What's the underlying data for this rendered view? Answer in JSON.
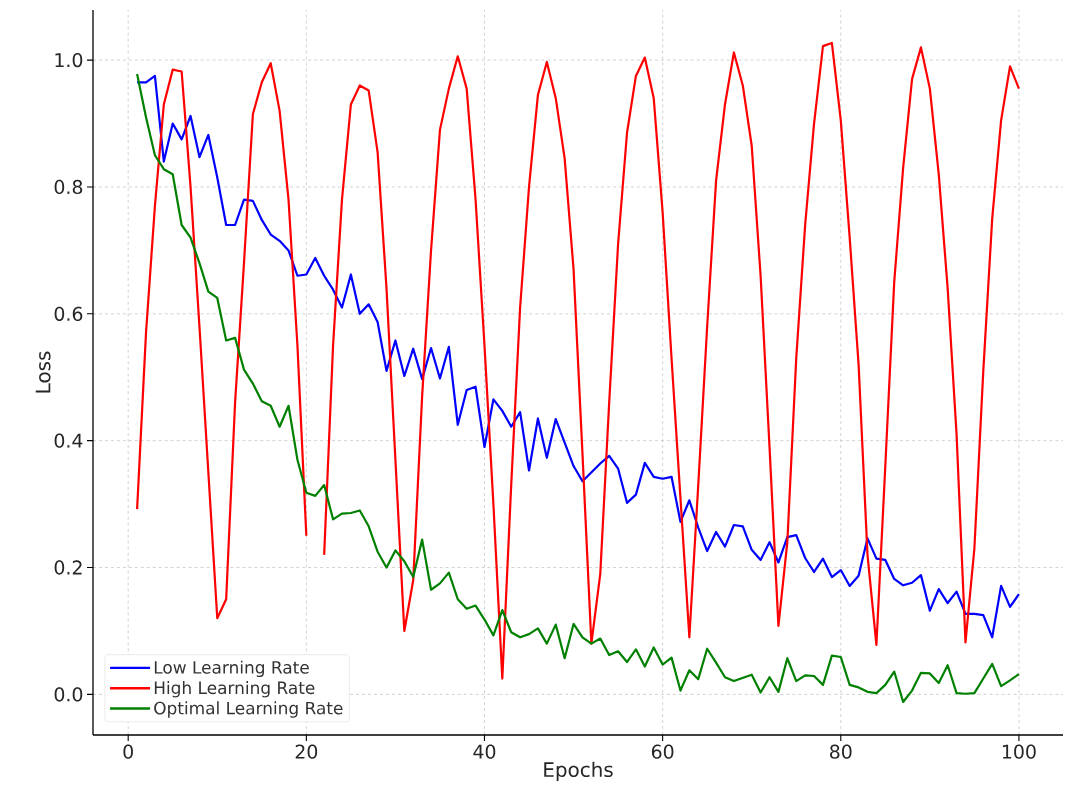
{
  "chart_data": {
    "type": "line",
    "xlabel": "Epochs",
    "ylabel": "Loss",
    "x": [
      1,
      2,
      3,
      4,
      5,
      6,
      7,
      8,
      9,
      10,
      11,
      12,
      13,
      14,
      15,
      16,
      17,
      18,
      19,
      20,
      21,
      22,
      23,
      24,
      25,
      26,
      27,
      28,
      29,
      30,
      31,
      32,
      33,
      34,
      35,
      36,
      37,
      38,
      39,
      40,
      41,
      42,
      43,
      44,
      45,
      46,
      47,
      48,
      49,
      50,
      51,
      52,
      53,
      54,
      55,
      56,
      57,
      58,
      59,
      60,
      61,
      62,
      63,
      64,
      65,
      66,
      67,
      68,
      69,
      70,
      71,
      72,
      73,
      74,
      75,
      76,
      77,
      78,
      79,
      80,
      81,
      82,
      83,
      84,
      85,
      86,
      87,
      88,
      89,
      90,
      91,
      92,
      93,
      94,
      95,
      96,
      97,
      98,
      99,
      100
    ],
    "series": [
      {
        "name": "Low Learning Rate",
        "color": "#0000ff",
        "values": [
          0.965,
          0.965,
          0.975,
          0.84,
          0.9,
          0.875,
          0.912,
          0.847,
          0.882,
          0.815,
          0.74,
          0.74,
          0.78,
          0.778,
          0.748,
          0.725,
          0.715,
          0.7,
          0.66,
          0.662,
          0.688,
          0.66,
          0.638,
          0.61,
          0.662,
          0.6,
          0.615,
          0.587,
          0.51,
          0.558,
          0.502,
          0.545,
          0.497,
          0.546,
          0.498,
          0.548,
          0.425,
          0.48,
          0.485,
          0.39,
          0.465,
          0.447,
          0.422,
          0.445,
          0.353,
          0.435,
          0.373,
          0.434,
          0.397,
          0.36,
          0.336,
          0.35,
          0.364,
          0.376,
          0.356,
          0.302,
          0.315,
          0.365,
          0.343,
          0.34,
          0.343,
          0.272,
          0.306,
          0.263,
          0.226,
          0.256,
          0.233,
          0.267,
          0.265,
          0.228,
          0.212,
          0.24,
          0.208,
          0.248,
          0.251,
          0.215,
          0.193,
          0.214,
          0.185,
          0.196,
          0.171,
          0.187,
          0.246,
          0.214,
          0.212,
          0.182,
          0.172,
          0.176,
          0.188,
          0.132,
          0.166,
          0.144,
          0.162,
          0.127,
          0.127,
          0.125,
          0.09,
          0.171,
          0.138,
          0.158
        ]
      },
      {
        "name": "High Learning Rate",
        "color": "#ff0000",
        "values": [
          0.292,
          0.57,
          0.77,
          0.93,
          0.985,
          0.982,
          0.8,
          0.58,
          0.35,
          0.12,
          0.15,
          0.46,
          0.68,
          0.915,
          0.965,
          0.995,
          0.92,
          0.78,
          0.55,
          0.25,
          null,
          0.22,
          0.55,
          0.78,
          0.93,
          0.96,
          0.952,
          0.855,
          0.64,
          0.37,
          0.1,
          0.18,
          0.47,
          0.7,
          0.89,
          0.955,
          1.006,
          0.955,
          0.78,
          0.55,
          0.3,
          0.025,
          0.33,
          0.61,
          0.8,
          0.945,
          0.997,
          0.94,
          0.845,
          0.67,
          0.38,
          0.08,
          0.19,
          0.46,
          0.71,
          0.885,
          0.975,
          1.004,
          0.94,
          0.76,
          0.53,
          0.31,
          0.09,
          0.33,
          0.58,
          0.81,
          0.93,
          1.012,
          0.96,
          0.865,
          0.66,
          0.39,
          0.108,
          0.24,
          0.53,
          0.74,
          0.9,
          1.022,
          1.027,
          0.905,
          0.72,
          0.52,
          0.22,
          0.078,
          0.36,
          0.65,
          0.83,
          0.97,
          1.02,
          0.955,
          0.82,
          0.64,
          0.41,
          0.082,
          0.23,
          0.51,
          0.75,
          0.905,
          0.99,
          0.955
        ]
      },
      {
        "name": "Optimal Learning Rate",
        "color": "#008000",
        "values": [
          0.978,
          0.91,
          0.85,
          0.828,
          0.82,
          0.74,
          0.72,
          0.68,
          0.635,
          0.625,
          0.558,
          0.562,
          0.512,
          0.49,
          0.462,
          0.455,
          0.422,
          0.455,
          0.37,
          0.318,
          0.313,
          0.33,
          0.276,
          0.285,
          0.286,
          0.29,
          0.265,
          0.225,
          0.2,
          0.227,
          0.21,
          0.185,
          0.244,
          0.165,
          0.175,
          0.192,
          0.15,
          0.135,
          0.14,
          0.118,
          0.093,
          0.133,
          0.098,
          0.09,
          0.095,
          0.104,
          0.08,
          0.11,
          0.057,
          0.111,
          0.09,
          0.08,
          0.088,
          0.062,
          0.068,
          0.051,
          0.071,
          0.044,
          0.074,
          0.047,
          0.058,
          0.006,
          0.038,
          0.024,
          0.072,
          0.05,
          0.027,
          0.021,
          0.026,
          0.031,
          0.003,
          0.027,
          0.004,
          0.057,
          0.021,
          0.03,
          0.029,
          0.015,
          0.061,
          0.059,
          0.015,
          0.011,
          0.004,
          0.002,
          0.015,
          0.036,
          -0.012,
          0.006,
          0.034,
          0.033,
          0.018,
          0.046,
          0.002,
          0.001,
          0.002,
          0.025,
          0.048,
          0.013,
          0.022,
          0.032
        ]
      }
    ],
    "xlim": [
      -3.95,
      104.95
    ],
    "ylim": [
      -0.064,
      1.079
    ],
    "xticks": [
      0,
      20,
      40,
      60,
      80,
      100
    ],
    "yticks": [
      {
        "value": 0,
        "label": "0.0"
      },
      {
        "value": 0.2,
        "label": "0.2"
      },
      {
        "value": 0.4,
        "label": "0.4"
      },
      {
        "value": 0.6,
        "label": "0.6"
      },
      {
        "value": 0.8,
        "label": "0.8"
      },
      {
        "value": 1.0,
        "label": "1.0"
      }
    ],
    "grid": true,
    "legend": "bottom left",
    "marker": "none",
    "line_style": "solid"
  }
}
